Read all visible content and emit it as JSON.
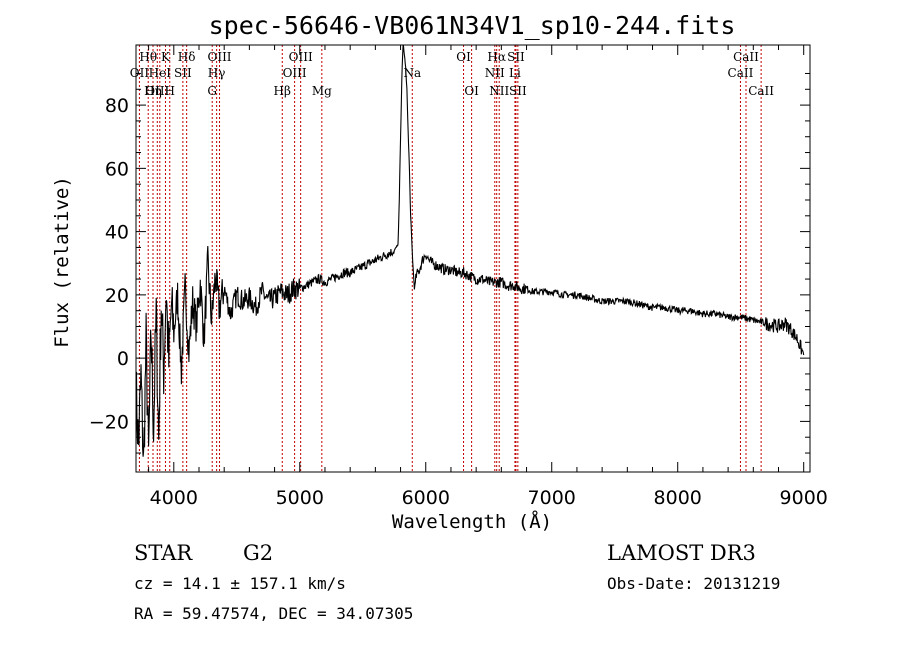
{
  "chart_data": {
    "type": "line",
    "title": "spec-56646-VB061N34V1_sp10-244.fits",
    "xlabel": "Wavelength (Å)",
    "ylabel": "Flux (relative)",
    "xlim": [
      3700,
      9050
    ],
    "ylim": [
      -36,
      99
    ],
    "xticks": [
      {
        "value": 4000,
        "label": "4000"
      },
      {
        "value": 5000,
        "label": "5000"
      },
      {
        "value": 6000,
        "label": "6000"
      },
      {
        "value": 7000,
        "label": "7000"
      },
      {
        "value": 8000,
        "label": "8000"
      },
      {
        "value": 9000,
        "label": "9000"
      }
    ],
    "yticks": [
      {
        "value": -20,
        "label": "−20"
      },
      {
        "value": 0,
        "label": "0"
      },
      {
        "value": 20,
        "label": "20"
      },
      {
        "value": 40,
        "label": "40"
      },
      {
        "value": 60,
        "label": "60"
      },
      {
        "value": 80,
        "label": "80"
      }
    ],
    "series": [
      {
        "name": "flux",
        "x": [
          3700,
          3720,
          3740,
          3760,
          3780,
          3800,
          3820,
          3840,
          3860,
          3880,
          3900,
          3920,
          3940,
          3960,
          3980,
          4000,
          4030,
          4060,
          4090,
          4120,
          4150,
          4180,
          4210,
          4240,
          4270,
          4300,
          4330,
          4360,
          4400,
          4450,
          4500,
          4550,
          4600,
          4650,
          4700,
          4750,
          4800,
          4850,
          4900,
          4950,
          5000,
          5050,
          5100,
          5150,
          5200,
          5250,
          5300,
          5350,
          5400,
          5450,
          5500,
          5550,
          5600,
          5650,
          5700,
          5750,
          5780,
          5790,
          5800,
          5810,
          5820,
          5830,
          5840,
          5850,
          5860,
          5870,
          5880,
          5890,
          5900,
          5910,
          5925,
          5950,
          5975,
          6000,
          6025,
          6050,
          6100,
          6150,
          6200,
          6250,
          6300,
          6350,
          6400,
          6450,
          6500,
          6550,
          6600,
          6650,
          6700,
          6750,
          6800,
          6850,
          6900,
          6950,
          7000,
          7100,
          7200,
          7300,
          7400,
          7500,
          7600,
          7700,
          7800,
          7900,
          8000,
          8100,
          8200,
          8300,
          8400,
          8500,
          8600,
          8700,
          8800,
          8850,
          8900,
          8950,
          9000
        ],
        "y": [
          -10,
          -28,
          -6,
          -34,
          5,
          -32,
          8,
          -22,
          14,
          -26,
          18,
          -4,
          22,
          -2,
          16,
          8,
          20,
          -4,
          22,
          2,
          18,
          10,
          24,
          6,
          30,
          12,
          26,
          16,
          22,
          14,
          20,
          18,
          19,
          16,
          21,
          18,
          19,
          21,
          20,
          22,
          22,
          23,
          24,
          25,
          24,
          25,
          26,
          27,
          27,
          28,
          29,
          30,
          31,
          32,
          33,
          34,
          36,
          50,
          70,
          88,
          100,
          96,
          92,
          85,
          72,
          60,
          45,
          36,
          28,
          22,
          26,
          28,
          31,
          33,
          31,
          30,
          29,
          28,
          28,
          27,
          27,
          26,
          25,
          25,
          24,
          24,
          24,
          23,
          23,
          22,
          22,
          21,
          21,
          21,
          21,
          20,
          20,
          19,
          18,
          18,
          18,
          17,
          16,
          16,
          15,
          15,
          14,
          14,
          13,
          13,
          12,
          11,
          10,
          11,
          9,
          6,
          1
        ]
      }
    ],
    "lines": [
      {
        "name": "Hθ",
        "wl": 3797,
        "row": 1
      },
      {
        "name": "OII",
        "wl": 3727,
        "row": 2
      },
      {
        "name": "OIII",
        "wl": 3869,
        "row": 3
      },
      {
        "name": "K",
        "wl": 3934,
        "row": 1
      },
      {
        "name": "HeI",
        "wl": 3889,
        "row": 2
      },
      {
        "name": "Hη",
        "wl": 3835,
        "row": 3
      },
      {
        "name": "H",
        "wl": 3968,
        "row": 3
      },
      {
        "name": "SII",
        "wl": 4072,
        "row": 2
      },
      {
        "name": "Hδ",
        "wl": 4102,
        "row": 1
      },
      {
        "name": "OIII",
        "wl": 4363,
        "row": 1
      },
      {
        "name": "Hγ",
        "wl": 4340,
        "row": 2
      },
      {
        "name": "G",
        "wl": 4305,
        "row": 3
      },
      {
        "name": "OIII",
        "wl": 5007,
        "row": 1
      },
      {
        "name": "OIII",
        "wl": 4959,
        "row": 2
      },
      {
        "name": "Hβ",
        "wl": 4861,
        "row": 3
      },
      {
        "name": "Mg",
        "wl": 5175,
        "row": 3
      },
      {
        "name": "Na",
        "wl": 5893,
        "row": 2
      },
      {
        "name": "OI",
        "wl": 6300,
        "row": 1
      },
      {
        "name": "OI",
        "wl": 6364,
        "row": 3
      },
      {
        "name": "Hα",
        "wl": 6563,
        "row": 1
      },
      {
        "name": "NII",
        "wl": 6548,
        "row": 2
      },
      {
        "name": "NII",
        "wl": 6583,
        "row": 3
      },
      {
        "name": "SII",
        "wl": 6716,
        "row": 1
      },
      {
        "name": "Li",
        "wl": 6708,
        "row": 2
      },
      {
        "name": "SII",
        "wl": 6731,
        "row": 3
      },
      {
        "name": "CaII",
        "wl": 8542,
        "row": 1
      },
      {
        "name": "CaII",
        "wl": 8498,
        "row": 2
      },
      {
        "name": "CaII",
        "wl": 8662,
        "row": 3
      }
    ]
  },
  "info": {
    "object_class": "STAR",
    "subclass": "G2",
    "survey": "LAMOST DR3",
    "cz": "cz = 14.1 ± 157.1 km/s",
    "obs_date": "Obs-Date: 20131219",
    "coords": "RA =  59.47574, DEC =  34.07305"
  },
  "colors": {
    "spectrum": "#000000",
    "line_marker": "#c00000",
    "axis": "#000000"
  }
}
